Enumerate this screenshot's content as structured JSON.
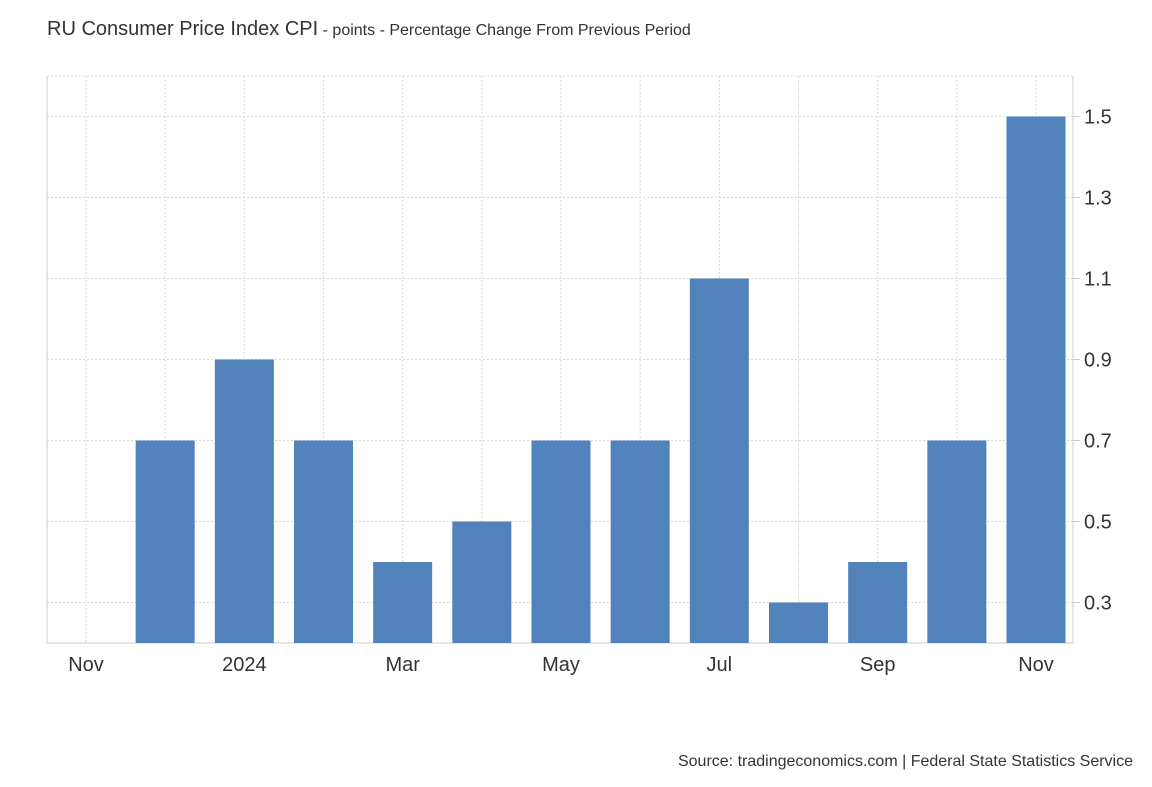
{
  "title": {
    "main": "RU Consumer Price Index CPI",
    "sub": " - points - Percentage Change From Previous Period"
  },
  "source": "Source: tradingeconomics.com | Federal State Statistics Service",
  "colors": {
    "bar": "#5182BB",
    "grid": "#d9d9d9",
    "axis": "#cccccc",
    "text": "#333333"
  },
  "chart_data": {
    "type": "bar",
    "title": "RU Consumer Price Index CPI - points - Percentage Change From Previous Period",
    "xlabel": "",
    "ylabel": "",
    "y_axis_side": "right",
    "ylim": [
      0.2,
      1.6
    ],
    "yticks": [
      0.3,
      0.5,
      0.7,
      0.9,
      1.1,
      1.3,
      1.5
    ],
    "grid": true,
    "categories": [
      "Nov 2023",
      "Dec 2023",
      "Jan 2024",
      "Feb 2024",
      "Mar 2024",
      "Apr 2024",
      "May 2024",
      "Jun 2024",
      "Jul 2024",
      "Aug 2024",
      "Sep 2024",
      "Oct 2024",
      "Nov 2024"
    ],
    "values": [
      null,
      0.7,
      0.9,
      0.7,
      0.4,
      0.5,
      0.7,
      0.7,
      1.1,
      0.3,
      0.4,
      0.7,
      1.5
    ],
    "xtick_labels": [
      {
        "index": 0,
        "label": "Nov"
      },
      {
        "index": 2,
        "label": "2024"
      },
      {
        "index": 4,
        "label": "Mar"
      },
      {
        "index": 6,
        "label": "May"
      },
      {
        "index": 8,
        "label": "Jul"
      },
      {
        "index": 10,
        "label": "Sep"
      },
      {
        "index": 12,
        "label": "Nov"
      }
    ]
  }
}
